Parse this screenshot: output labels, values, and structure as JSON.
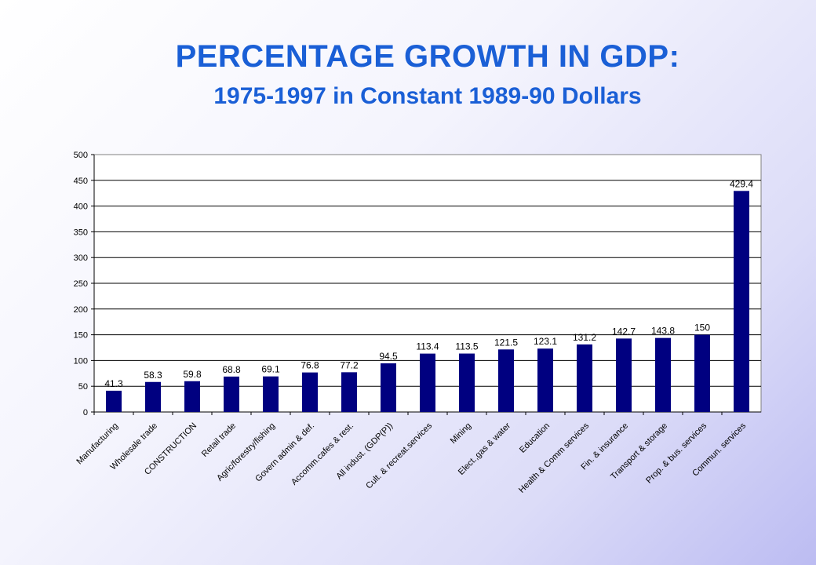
{
  "title": "PERCENTAGE GROWTH IN GDP:",
  "subtitle": "1975-1997 in Constant 1989-90 Dollars",
  "colors": {
    "bar": "#000080",
    "title": "#1a5fd6",
    "grid": "#000000",
    "plot_background": "#ffffff"
  },
  "chart_data": {
    "type": "bar",
    "title": "",
    "xlabel": "",
    "ylabel": "",
    "ylim": [
      0,
      500
    ],
    "yticks": [
      0,
      50,
      100,
      150,
      200,
      250,
      300,
      350,
      400,
      450,
      500
    ],
    "grid": true,
    "legend": "none",
    "categories": [
      "Manufacturing",
      "Wholesale trade",
      "CONSTRUCTION",
      "Retail trade",
      "Agric/forestry/fishing",
      "Govern admin & def.",
      "Accomm.cafes & rest.",
      "All indust. (GDP(P))",
      "Cult. & recreat.services",
      "Mining",
      "Elect.,gas & water",
      "Education",
      "Health & Comm services",
      "Fin. & insurance",
      "Transport & storage",
      "Prop. & bus. services",
      "Commun. services"
    ],
    "values": [
      41.3,
      58.3,
      59.8,
      68.8,
      69.1,
      76.8,
      77.2,
      94.5,
      113.4,
      113.5,
      121.5,
      123.1,
      131.2,
      142.7,
      143.8,
      150,
      429.4
    ],
    "data_labels": [
      "41.3",
      "58.3",
      "59.8",
      "68.8",
      "69.1",
      "76.8",
      "77.2",
      "94.5",
      "113.4",
      "113.5",
      "121.5",
      "123.1",
      "131.2",
      "142.7",
      "143.8",
      "150",
      "429.4"
    ]
  }
}
